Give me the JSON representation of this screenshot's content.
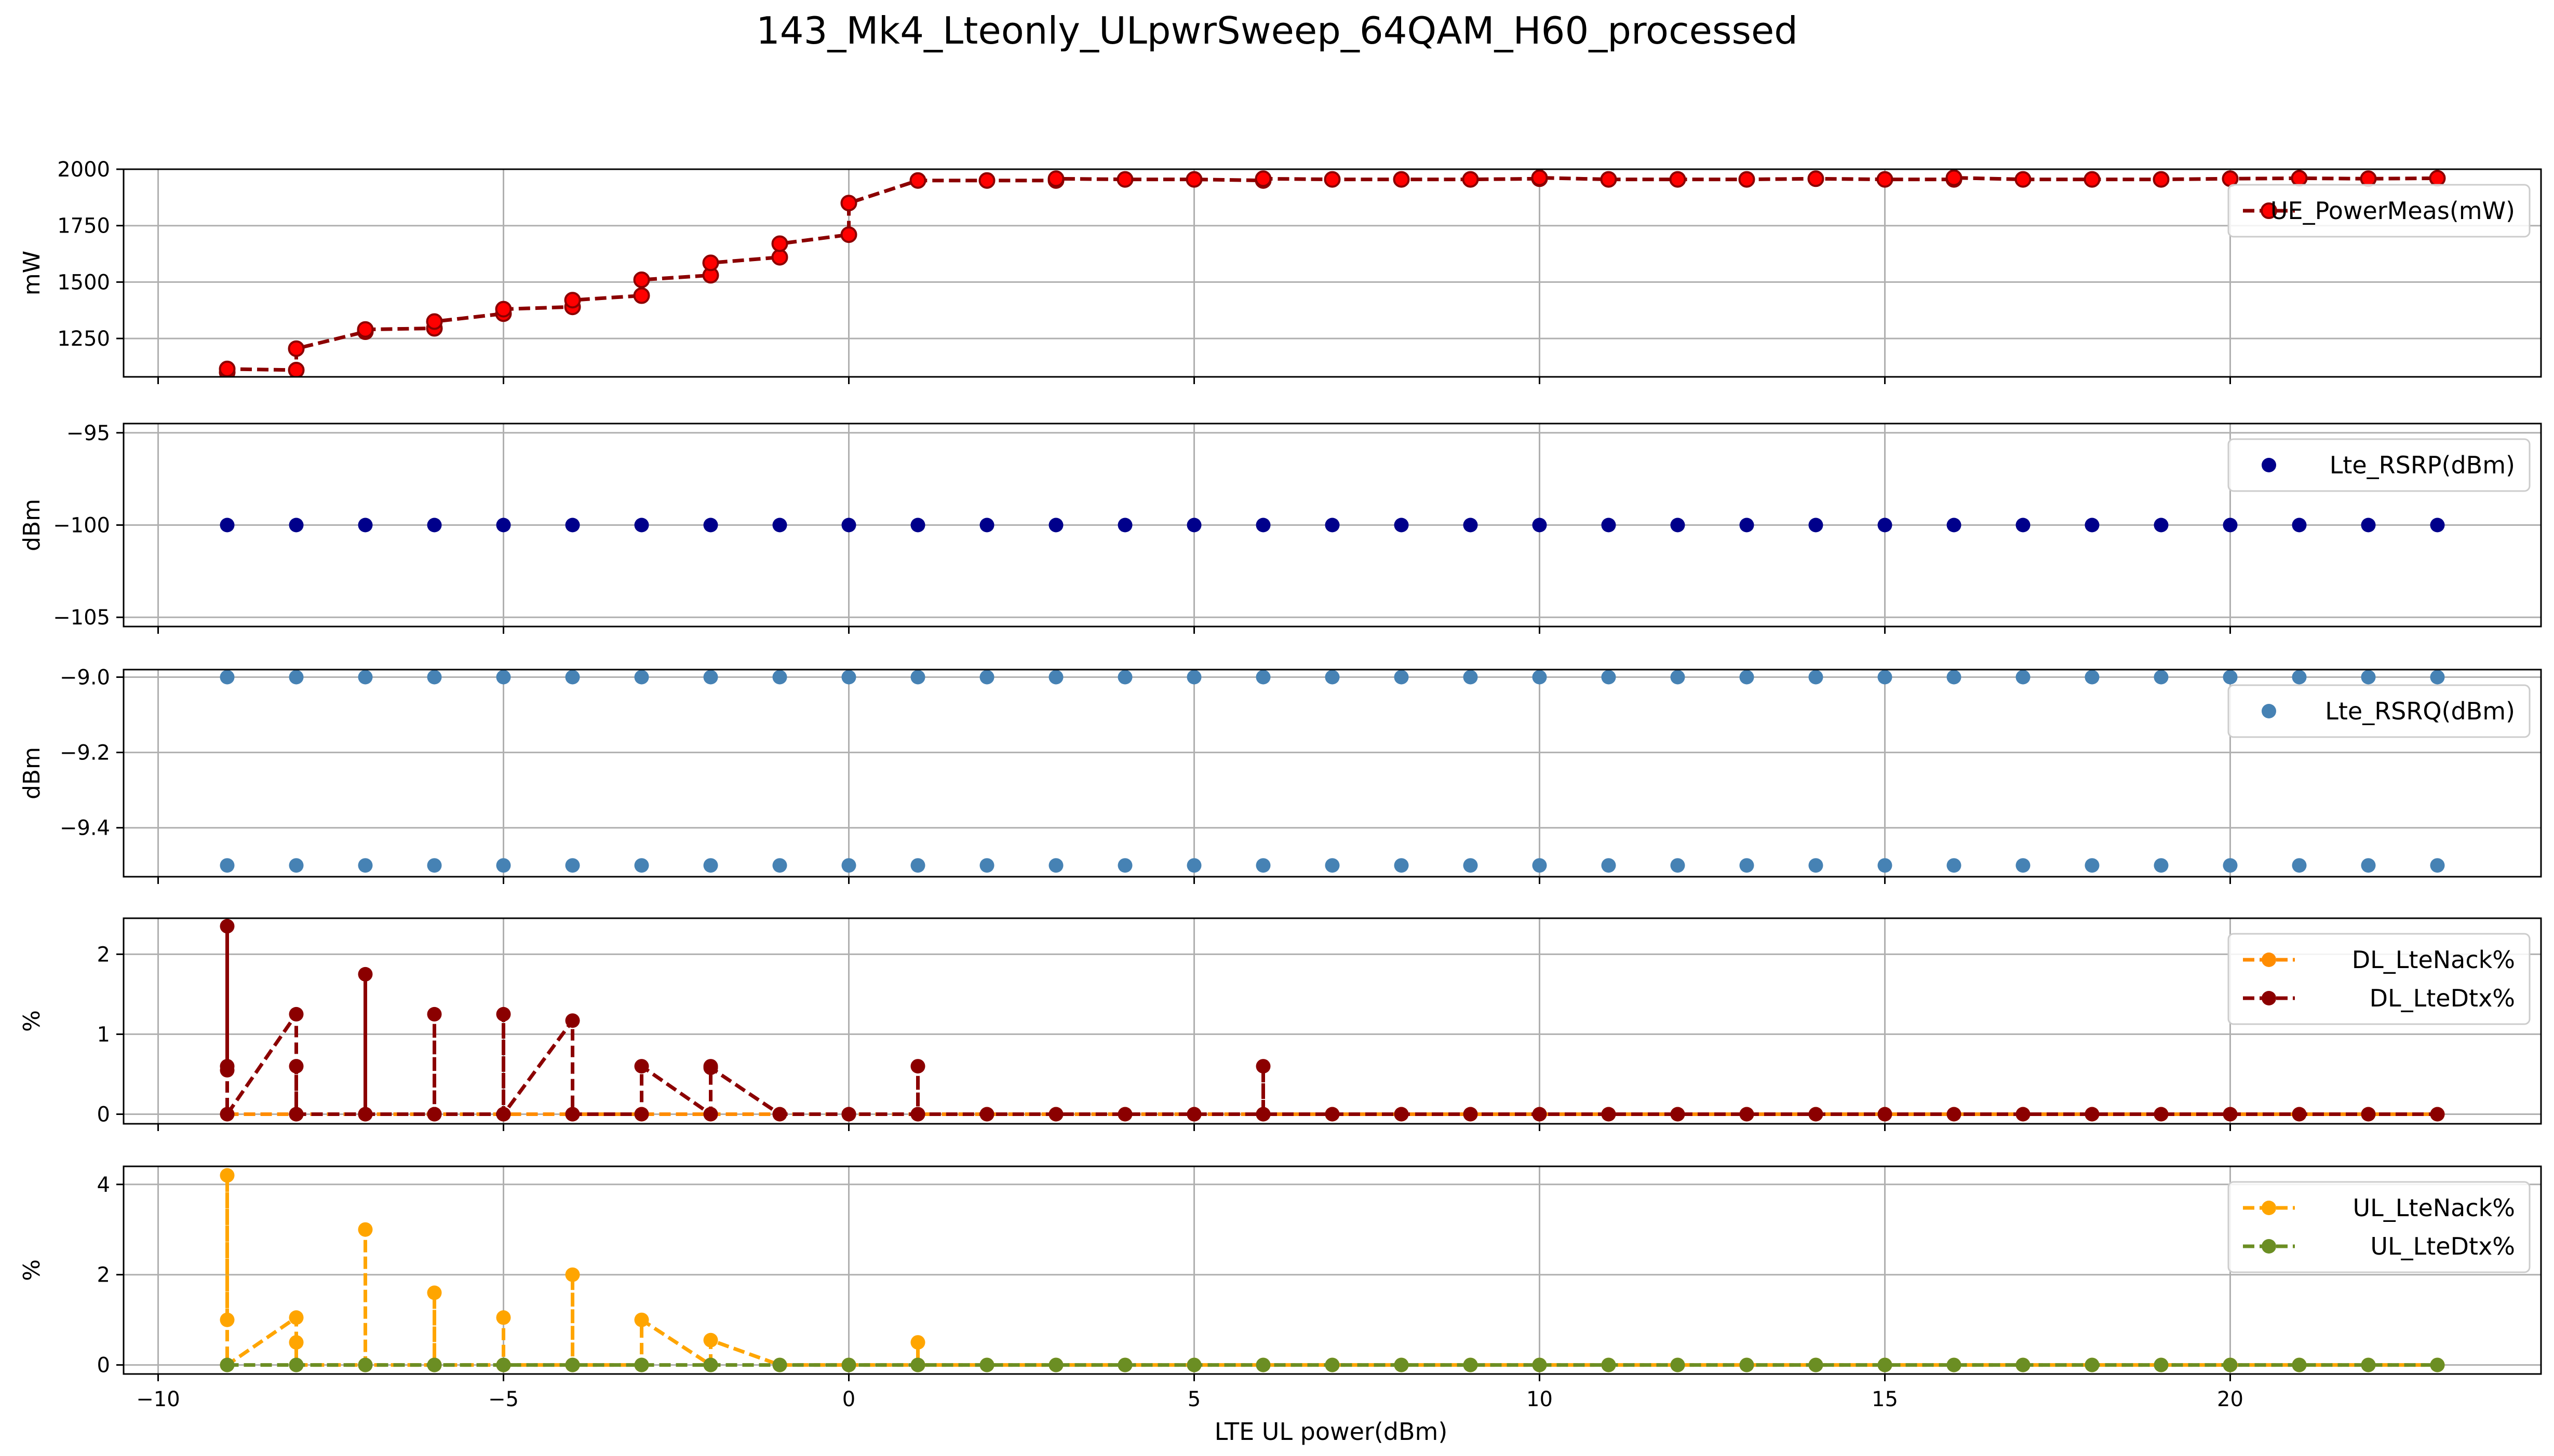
{
  "figure": {
    "title": "143_Mk4_Lteonly_ULpwrSweep_64QAM_H60_processed",
    "xlabel": "LTE UL power(dBm)"
  },
  "chart_data": [
    {
      "type": "line",
      "ylabel": "mW",
      "xlim": [
        -10.5,
        24.5
      ],
      "ylim": [
        1080,
        2000
      ],
      "xticks": [
        -10,
        -5,
        0,
        5,
        10,
        15,
        20
      ],
      "yticks": [
        1250,
        1500,
        1750,
        2000
      ],
      "ytick_labels": [
        "1250",
        "1500",
        "1750",
        "2000"
      ],
      "grid": true,
      "legend": "top-right",
      "series": [
        {
          "name": "UE_PowerMeas(mW)",
          "color": "#8b0000",
          "marker_color": "#ff0000",
          "line": "dashed",
          "x": [
            -9,
            -9,
            -8,
            -8,
            -7,
            -7,
            -6,
            -6,
            -5,
            -5,
            -4,
            -4,
            -3,
            -3,
            -2,
            -2,
            -1,
            -1,
            0,
            0,
            1,
            2,
            3,
            3,
            4,
            5,
            6,
            6,
            7,
            8,
            9,
            10,
            10,
            11,
            12,
            13,
            14,
            15,
            16,
            16,
            17,
            18,
            19,
            20,
            21,
            22,
            23
          ],
          "y": [
            1100,
            1115,
            1110,
            1205,
            1280,
            1290,
            1295,
            1325,
            1360,
            1380,
            1390,
            1420,
            1440,
            1510,
            1530,
            1585,
            1610,
            1670,
            1710,
            1850,
            1950,
            1950,
            1950,
            1958,
            1955,
            1955,
            1950,
            1958,
            1955,
            1955,
            1955,
            1958,
            1962,
            1955,
            1955,
            1955,
            1958,
            1955,
            1955,
            1962,
            1955,
            1955,
            1955,
            1958,
            1960,
            1958,
            1960
          ]
        }
      ]
    },
    {
      "type": "scatter",
      "ylabel": "dBm",
      "xlim": [
        -10.5,
        24.5
      ],
      "ylim": [
        -105.5,
        -94.5
      ],
      "xticks": [
        -10,
        -5,
        0,
        5,
        10,
        15,
        20
      ],
      "yticks": [
        -95,
        -100,
        -105
      ],
      "ytick_labels": [
        "−95",
        "−100",
        "−105"
      ],
      "grid": true,
      "legend": "top-right",
      "series": [
        {
          "name": "Lte_RSRP(dBm)",
          "color": "#00008b",
          "x": [
            -9,
            -8,
            -7,
            -6,
            -5,
            -4,
            -3,
            -2,
            -1,
            0,
            1,
            2,
            3,
            4,
            5,
            6,
            7,
            8,
            9,
            10,
            11,
            12,
            13,
            14,
            15,
            16,
            17,
            18,
            19,
            20,
            21,
            22,
            23
          ],
          "y": [
            -100,
            -100,
            -100,
            -100,
            -100,
            -100,
            -100,
            -100,
            -100,
            -100,
            -100,
            -100,
            -100,
            -100,
            -100,
            -100,
            -100,
            -100,
            -100,
            -100,
            -100,
            -100,
            -100,
            -100,
            -100,
            -100,
            -100,
            -100,
            -100,
            -100,
            -100,
            -100,
            -100
          ]
        }
      ]
    },
    {
      "type": "scatter",
      "ylabel": "dBm",
      "xlim": [
        -10.5,
        24.5
      ],
      "ylim": [
        -9.53,
        -8.98
      ],
      "xticks": [
        -10,
        -5,
        0,
        5,
        10,
        15,
        20
      ],
      "yticks": [
        -9.0,
        -9.2,
        -9.4
      ],
      "ytick_labels": [
        "−9.0",
        "−9.2",
        "−9.4"
      ],
      "grid": true,
      "legend": "top-right",
      "series": [
        {
          "name": "Lte_RSRQ(dBm)",
          "color": "#4682b4",
          "x": [
            -9,
            -9,
            -8,
            -8,
            -7,
            -7,
            -6,
            -6,
            -5,
            -5,
            -4,
            -4,
            -3,
            -3,
            -2,
            -2,
            -1,
            -1,
            0,
            0,
            1,
            1,
            2,
            2,
            3,
            3,
            4,
            4,
            5,
            5,
            6,
            6,
            7,
            7,
            8,
            8,
            9,
            9,
            10,
            10,
            11,
            11,
            12,
            12,
            13,
            13,
            14,
            14,
            15,
            15,
            16,
            16,
            17,
            17,
            18,
            18,
            19,
            19,
            20,
            20,
            21,
            21,
            22,
            22,
            23,
            23
          ],
          "y": [
            -9.0,
            -9.5,
            -9.0,
            -9.5,
            -9.0,
            -9.5,
            -9.0,
            -9.5,
            -9.0,
            -9.5,
            -9.0,
            -9.5,
            -9.0,
            -9.5,
            -9.0,
            -9.5,
            -9.0,
            -9.5,
            -9.0,
            -9.5,
            -9.0,
            -9.5,
            -9.0,
            -9.5,
            -9.0,
            -9.5,
            -9.0,
            -9.5,
            -9.0,
            -9.5,
            -9.0,
            -9.5,
            -9.0,
            -9.5,
            -9.0,
            -9.5,
            -9.0,
            -9.5,
            -9.0,
            -9.5,
            -9.0,
            -9.5,
            -9.0,
            -9.5,
            -9.0,
            -9.5,
            -9.0,
            -9.5,
            -9.0,
            -9.5,
            -9.0,
            -9.5,
            -9.0,
            -9.5,
            -9.0,
            -9.5,
            -9.0,
            -9.5,
            -9.0,
            -9.5,
            -9.0,
            -9.5,
            -9.0,
            -9.5,
            -9.0,
            -9.5
          ]
        }
      ]
    },
    {
      "type": "line",
      "ylabel": "%",
      "xlim": [
        -10.5,
        24.5
      ],
      "ylim": [
        -0.12,
        2.45
      ],
      "xticks": [
        -10,
        -5,
        0,
        5,
        10,
        15,
        20
      ],
      "yticks": [
        0,
        1,
        2
      ],
      "ytick_labels": [
        "0",
        "1",
        "2"
      ],
      "grid": true,
      "legend": "top-right",
      "series": [
        {
          "name": "DL_LteNack%",
          "color": "#ff8c00",
          "line": "dashed",
          "x": [
            -9,
            -8,
            -7,
            -6,
            -5,
            -4,
            -3,
            -2,
            -1,
            0,
            1,
            2,
            3,
            4,
            5,
            6,
            7,
            8,
            9,
            10,
            11,
            12,
            13,
            14,
            15,
            16,
            17,
            18,
            19,
            20,
            21,
            22,
            23
          ],
          "y": [
            0,
            0,
            0,
            0,
            0,
            0,
            0,
            0,
            0,
            0,
            0,
            0,
            0,
            0,
            0,
            0,
            0,
            0,
            0,
            0,
            0,
            0,
            0,
            0,
            0,
            0,
            0,
            0,
            0,
            0,
            0,
            0,
            0
          ]
        },
        {
          "name": "DL_LteDtx%",
          "color": "#8b0000",
          "line": "dashed",
          "x": [
            -9,
            -9,
            -9,
            -9,
            -8,
            -8,
            -8,
            -8,
            -7,
            -7,
            -7,
            -6,
            -6,
            -6,
            -5,
            -5,
            -5,
            -4,
            -4,
            -4,
            -3,
            -3,
            -2,
            -2,
            -2,
            -1,
            0,
            0,
            1,
            1,
            1,
            2,
            3,
            4,
            5,
            5,
            6,
            6,
            6,
            7,
            8,
            9,
            10,
            11,
            12,
            13,
            14,
            15,
            16,
            17,
            18,
            19,
            20,
            21,
            22,
            23
          ],
          "y": [
            0.55,
            0.6,
            2.35,
            0,
            1.25,
            0,
            0.6,
            0,
            0,
            1.75,
            0,
            0,
            1.25,
            0,
            0,
            1.25,
            0,
            1.17,
            0,
            0,
            0,
            0.6,
            0,
            0.6,
            0.58,
            0,
            0,
            0,
            0,
            0.6,
            0,
            0,
            0,
            0,
            0,
            0,
            0,
            0.6,
            0,
            0,
            0,
            0,
            0,
            0,
            0,
            0,
            0,
            0,
            0,
            0,
            0,
            0,
            0,
            0,
            0,
            0
          ]
        }
      ]
    },
    {
      "type": "line",
      "ylabel": "%",
      "xlim": [
        -10.5,
        24.5
      ],
      "ylim": [
        -0.2,
        4.4
      ],
      "xticks": [
        -10,
        -5,
        0,
        5,
        10,
        15,
        20
      ],
      "yticks": [
        0,
        2,
        4
      ],
      "ytick_labels": [
        "0",
        "2",
        "4"
      ],
      "xtick_labels": [
        "−10",
        "−5",
        "0",
        "5",
        "10",
        "15",
        "20"
      ],
      "grid": true,
      "legend": "top-right",
      "series": [
        {
          "name": "UL_LteNack%",
          "color": "#ffa500",
          "line": "dashed",
          "x": [
            -9,
            -9,
            -9,
            -8,
            -8,
            -8,
            -7,
            -7,
            -7,
            -6,
            -6,
            -6,
            -5,
            -5,
            -5,
            -4,
            -4,
            -4,
            -3,
            -3,
            -2,
            -2,
            -1,
            0,
            1,
            1,
            1,
            2,
            3,
            4,
            5,
            6,
            7,
            8,
            9,
            10,
            11,
            12,
            13,
            14,
            15,
            16,
            17,
            18,
            19,
            20,
            21,
            22,
            23
          ],
          "y": [
            1.0,
            4.2,
            0,
            1.05,
            0.5,
            0,
            0,
            3.0,
            0,
            0,
            1.6,
            0,
            0,
            1.05,
            0,
            0,
            2.0,
            0,
            0,
            1.0,
            0,
            0.55,
            0,
            0,
            0,
            0.5,
            0,
            0,
            0,
            0,
            0,
            0,
            0,
            0,
            0,
            0,
            0,
            0,
            0,
            0,
            0,
            0,
            0,
            0,
            0,
            0,
            0,
            0,
            0
          ]
        },
        {
          "name": "UL_LteDtx%",
          "color": "#6b8e23",
          "line": "dashed",
          "x": [
            -9,
            -8,
            -7,
            -6,
            -5,
            -4,
            -3,
            -2,
            -1,
            0,
            1,
            2,
            3,
            4,
            5,
            6,
            7,
            8,
            9,
            10,
            11,
            12,
            13,
            14,
            15,
            16,
            17,
            18,
            19,
            20,
            21,
            22,
            23
          ],
          "y": [
            0,
            0,
            0,
            0,
            0,
            0,
            0,
            0,
            0,
            0,
            0,
            0,
            0,
            0,
            0,
            0,
            0,
            0,
            0,
            0,
            0,
            0,
            0,
            0,
            0,
            0,
            0,
            0,
            0,
            0,
            0,
            0,
            0
          ]
        }
      ]
    }
  ]
}
